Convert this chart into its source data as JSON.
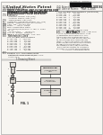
{
  "page_bg": "#f5f4f0",
  "white": "#ffffff",
  "barcode_color": "#111111",
  "dark_text": "#222222",
  "mid_text": "#444444",
  "light_text": "#666666",
  "line_color": "#888888",
  "border_color": "#aaaaaa",
  "diagram_bg": "#e8e6e0",
  "box_fill": "#d8d6d0"
}
